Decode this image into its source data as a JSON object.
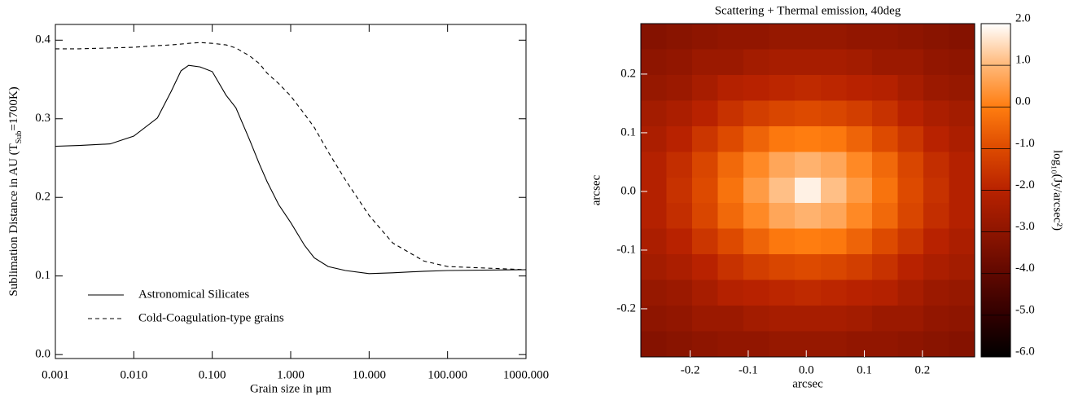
{
  "chart_data": [
    {
      "type": "line",
      "xlabel": "Grain size in μm",
      "ylabel": [
        "Sublimation Distance in AU (T",
        "Sub",
        "=1700K)"
      ],
      "xlog": true,
      "xlim": [
        0.001,
        1000
      ],
      "xticks": [
        0.001,
        {
          "value": 0.01,
          "label": "0.010"
        },
        {
          "value": 0.1,
          "label": "0.100"
        },
        {
          "value": 1,
          "label": "1.000"
        },
        {
          "value": 10,
          "label": "10.000"
        },
        {
          "value": 100,
          "label": "100.000"
        },
        {
          "value": 1000,
          "label": "1000.000"
        }
      ],
      "ylim": [
        -0.005,
        0.42
      ],
      "yticks": [
        {
          "value": 0,
          "label": "0.0"
        },
        0.1,
        0.2,
        0.3,
        0.4
      ],
      "legend": "lower left",
      "x": [
        0.001,
        0.002,
        0.005,
        0.01,
        0.02,
        0.03,
        0.04,
        0.05,
        0.07,
        0.1,
        0.15,
        0.2,
        0.3,
        0.4,
        0.5,
        0.7,
        1,
        1.5,
        2,
        3,
        5,
        10,
        20,
        50,
        100,
        1000
      ],
      "series": [
        {
          "name": "Astronomical Silicates",
          "color": "#000000",
          "linestyle": "solid",
          "values": [
            0.265,
            0.266,
            0.268,
            0.278,
            0.301,
            0.335,
            0.361,
            0.368,
            0.366,
            0.36,
            0.33,
            0.314,
            0.273,
            0.242,
            0.22,
            0.191,
            0.168,
            0.139,
            0.123,
            0.112,
            0.107,
            0.103,
            0.104,
            0.106,
            0.107,
            0.108
          ]
        },
        {
          "name": "Cold-Coagulation-type grains",
          "color": "#000000",
          "linestyle": "dashed",
          "values": [
            0.389,
            0.389,
            0.39,
            0.391,
            0.393,
            0.394,
            0.395,
            0.396,
            0.397,
            0.396,
            0.394,
            0.39,
            0.38,
            0.37,
            0.358,
            0.345,
            0.329,
            0.306,
            0.289,
            0.258,
            0.222,
            0.177,
            0.142,
            0.119,
            0.112,
            0.108
          ]
        }
      ]
    },
    {
      "type": "heatmap",
      "title": "Scattering + Thermal emission, 40deg",
      "xlabel": "arcsec",
      "ylabel": "arcsec",
      "zlabel": "log₁₀(Jy/arcsec²)",
      "xlim": [
        -0.285,
        0.29
      ],
      "ylim": [
        -0.282,
        0.286
      ],
      "xticks": [
        -0.2,
        -0.1,
        {
          "value": 0,
          "label": "0.0"
        },
        0.1,
        0.2
      ],
      "yticks": [
        -0.2,
        -0.1,
        {
          "value": 0,
          "label": "0.0"
        },
        0.1,
        0.2
      ],
      "zlim": [
        -6,
        2
      ],
      "zticks": [
        {
          "value": -6,
          "label": "-6.0"
        },
        {
          "value": -5,
          "label": "-5.0"
        },
        {
          "value": -4,
          "label": "-4.0"
        },
        {
          "value": -3,
          "label": "-3.0"
        },
        {
          "value": -2,
          "label": "-2.0"
        },
        {
          "value": -1,
          "label": "-1.0"
        },
        {
          "value": 0,
          "label": "0.0"
        },
        {
          "value": 1,
          "label": "1.0"
        },
        {
          "value": 2,
          "label": "2.0"
        }
      ],
      "colors": [
        "#000000",
        "#300000",
        "#600800",
        "#8e1500",
        "#b82200",
        "#dd4a00",
        "#ff7d10",
        "#ffb878",
        "#ffffff"
      ],
      "z": [
        [
          -3.2,
          -3.1,
          -3.0,
          -2.9,
          -2.9,
          -2.8,
          -2.8,
          -2.8,
          -2.9,
          -2.9,
          -3.0,
          -3.1,
          -3.2
        ],
        [
          -3.0,
          -2.9,
          -2.7,
          -2.7,
          -2.5,
          -2.4,
          -2.4,
          -2.4,
          -2.5,
          -2.7,
          -2.7,
          -2.9,
          -3.0
        ],
        [
          -2.8,
          -2.7,
          -2.4,
          -2.1,
          -2.0,
          -1.9,
          -1.8,
          -1.9,
          -2.0,
          -2.1,
          -2.4,
          -2.7,
          -2.8
        ],
        [
          -2.5,
          -2.3,
          -2.0,
          -1.6,
          -1.3,
          -1.1,
          -1.0,
          -1.1,
          -1.3,
          -1.6,
          -2.0,
          -2.3,
          -2.5
        ],
        [
          -2.3,
          -2.0,
          -1.5,
          -1.0,
          -0.5,
          -0.1,
          0.0,
          -0.1,
          -0.5,
          -1.0,
          -1.5,
          -2.0,
          -2.3
        ],
        [
          -2.1,
          -1.7,
          -1.1,
          -0.4,
          0.2,
          0.7,
          0.9,
          0.7,
          0.2,
          -0.4,
          -1.1,
          -1.7,
          -2.1
        ],
        [
          -2.1,
          -1.6,
          -1.0,
          -0.2,
          0.5,
          1.1,
          1.8,
          1.1,
          0.5,
          -0.2,
          -1.0,
          -1.6,
          -2.1
        ],
        [
          -2.1,
          -1.7,
          -1.1,
          -0.4,
          0.2,
          0.7,
          0.9,
          0.7,
          0.2,
          -0.4,
          -1.1,
          -1.7,
          -2.1
        ],
        [
          -2.3,
          -2.0,
          -1.5,
          -1.0,
          -0.5,
          -0.1,
          0.0,
          -0.1,
          -0.5,
          -1.0,
          -1.5,
          -2.0,
          -2.3
        ],
        [
          -2.5,
          -2.3,
          -2.0,
          -1.6,
          -1.3,
          -1.1,
          -1.0,
          -1.1,
          -1.3,
          -1.6,
          -2.0,
          -2.3,
          -2.5
        ],
        [
          -2.8,
          -2.7,
          -2.4,
          -2.1,
          -2.0,
          -1.9,
          -1.8,
          -1.9,
          -2.0,
          -2.1,
          -2.4,
          -2.7,
          -2.8
        ],
        [
          -3.0,
          -2.9,
          -2.7,
          -2.7,
          -2.5,
          -2.4,
          -2.4,
          -2.4,
          -2.5,
          -2.7,
          -2.7,
          -2.9,
          -3.0
        ],
        [
          -3.2,
          -3.1,
          -3.0,
          -2.9,
          -2.9,
          -2.8,
          -2.8,
          -2.8,
          -2.9,
          -2.9,
          -3.0,
          -3.1,
          -3.2
        ]
      ]
    }
  ]
}
